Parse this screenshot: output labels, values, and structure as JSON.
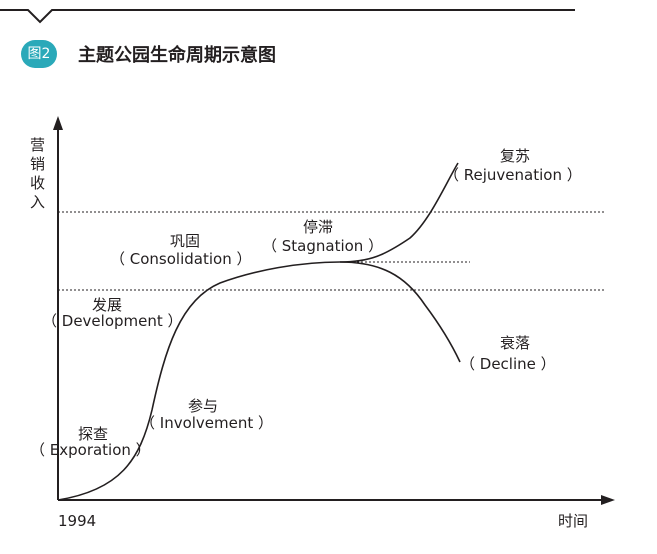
{
  "figure": {
    "badge": "图2",
    "title": "主题公园生命周期示意图"
  },
  "axes": {
    "y_label": [
      "营",
      "销",
      "收",
      "入"
    ],
    "x_start": "1994",
    "x_label": "时间"
  },
  "stages": [
    {
      "cn": "探查",
      "en": "（ Exporation ）"
    },
    {
      "cn": "参与",
      "en": "（ Involvement ）"
    },
    {
      "cn": "发展",
      "en": "（ Development ）"
    },
    {
      "cn": "巩固",
      "en": "（ Consolidation ）"
    },
    {
      "cn": "停滞",
      "en": "（ Stagnation ）"
    },
    {
      "cn": "复苏",
      "en": "（ Rejuvenation ）"
    },
    {
      "cn": "衰落",
      "en": "（ Decline ）"
    }
  ],
  "colors": {
    "badge": "#2aa9b9",
    "ink": "#231f20"
  }
}
